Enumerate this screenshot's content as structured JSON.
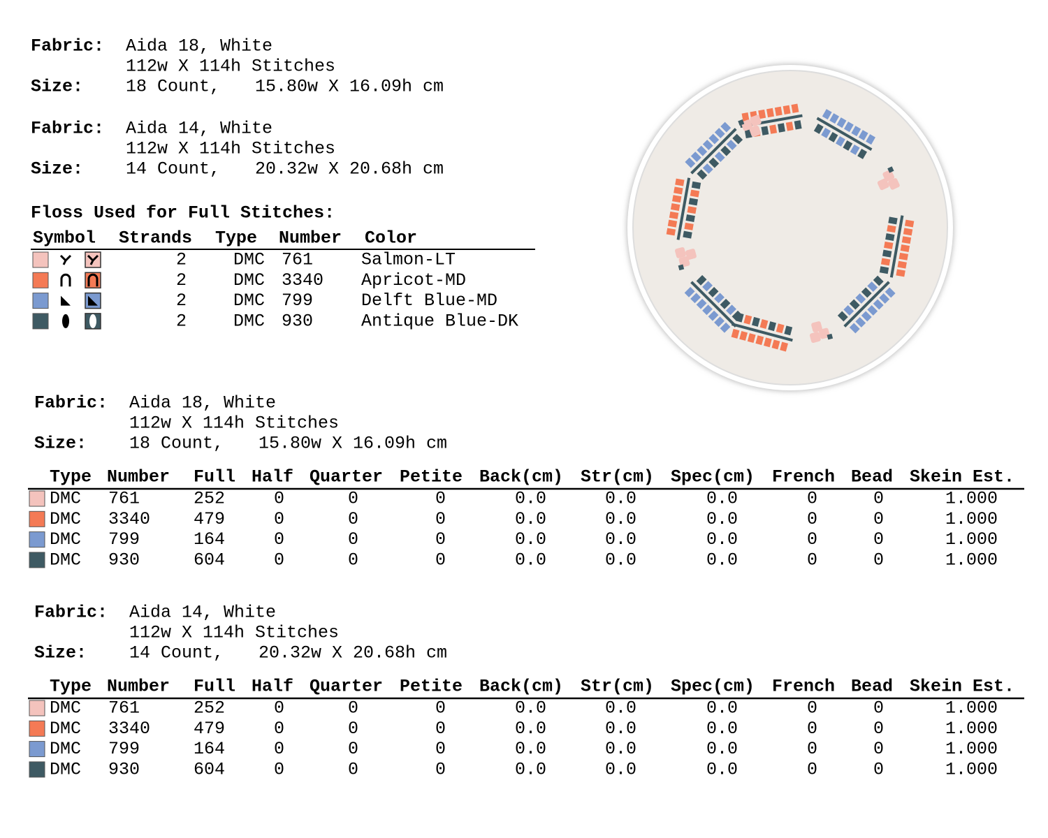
{
  "fabric_info": [
    {
      "fabric_label": "Fabric:",
      "fabric": "Aida 18, White",
      "stitches": "112w X 114h Stitches",
      "size_label": "Size:",
      "count": "18 Count,",
      "dimensions": "15.80w X 16.09h cm"
    },
    {
      "fabric_label": "Fabric:",
      "fabric": "Aida 14, White",
      "stitches": "112w X 114h Stitches",
      "size_label": "Size:",
      "count": "14 Count,",
      "dimensions": "20.32w X 20.68h cm"
    }
  ],
  "floss": {
    "title": "Floss Used for Full Stitches:",
    "headers": [
      "Symbol",
      "Strands",
      "Type",
      "Number",
      "Color"
    ],
    "rows": [
      {
        "color": "#f4c3bd",
        "strands": "2",
        "type": "DMC",
        "number": "761",
        "name": "Salmon-LT"
      },
      {
        "color": "#f47a55",
        "strands": "2",
        "type": "DMC",
        "number": "3340",
        "name": "Apricot-MD"
      },
      {
        "color": "#7b9ad0",
        "strands": "2",
        "type": "DMC",
        "number": "799",
        "name": "Delft Blue-MD"
      },
      {
        "color": "#3e5a63",
        "strands": "2",
        "type": "DMC",
        "number": "930",
        "name": "Antique Blue-DK"
      }
    ]
  },
  "stitch_tables": [
    {
      "fabric_info": {
        "fabric_label": "Fabric:",
        "fabric": "Aida 18, White",
        "stitches": "112w X 114h Stitches",
        "size_label": "Size:",
        "count": "18 Count,",
        "dimensions": "15.80w X 16.09h cm"
      },
      "headers": [
        "Type",
        "Number",
        "Full",
        "Half",
        "Quarter",
        "Petite",
        "Back(cm)",
        "Str(cm)",
        "Spec(cm)",
        "French",
        "Bead",
        "Skein Est."
      ],
      "rows": [
        [
          "DMC",
          "761",
          "252",
          "0",
          "0",
          "0",
          "0.0",
          "0.0",
          "0.0",
          "0",
          "0",
          "1.000"
        ],
        [
          "DMC",
          "3340",
          "479",
          "0",
          "0",
          "0",
          "0.0",
          "0.0",
          "0.0",
          "0",
          "0",
          "1.000"
        ],
        [
          "DMC",
          "799",
          "164",
          "0",
          "0",
          "0",
          "0.0",
          "0.0",
          "0.0",
          "0",
          "0",
          "1.000"
        ],
        [
          "DMC",
          "930",
          "604",
          "0",
          "0",
          "0",
          "0.0",
          "0.0",
          "0.0",
          "0",
          "0",
          "1.000"
        ]
      ]
    },
    {
      "fabric_info": {
        "fabric_label": "Fabric:",
        "fabric": "Aida 14, White",
        "stitches": "112w X 114h Stitches",
        "size_label": "Size:",
        "count": "14 Count,",
        "dimensions": "20.32w X 20.68h cm"
      },
      "headers": [
        "Type",
        "Number",
        "Full",
        "Half",
        "Quarter",
        "Petite",
        "Back(cm)",
        "Str(cm)",
        "Spec(cm)",
        "French",
        "Bead",
        "Skein Est."
      ],
      "rows": [
        [
          "DMC",
          "761",
          "252",
          "0",
          "0",
          "0",
          "0.0",
          "0.0",
          "0.0",
          "0",
          "0",
          "1.000"
        ],
        [
          "DMC",
          "3340",
          "479",
          "0",
          "0",
          "0",
          "0.0",
          "0.0",
          "0.0",
          "0",
          "0",
          "1.000"
        ],
        [
          "DMC",
          "799",
          "164",
          "0",
          "0",
          "0",
          "0.0",
          "0.0",
          "0.0",
          "0",
          "0",
          "1.000"
        ],
        [
          "DMC",
          "930",
          "604",
          "0",
          "0",
          "0",
          "0.0",
          "0.0",
          "0.0",
          "0",
          "0",
          "1.000"
        ]
      ]
    }
  ]
}
